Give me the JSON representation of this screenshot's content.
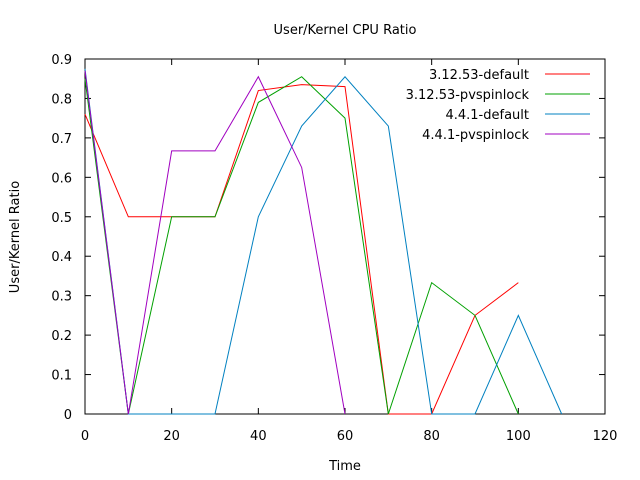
{
  "chart_data": {
    "type": "line",
    "title": "User/Kernel CPU Ratio",
    "xlabel": "Time",
    "ylabel": "User/Kernel Ratio",
    "xlim": [
      0,
      120
    ],
    "ylim": [
      0,
      0.9
    ],
    "xticks": [
      "0",
      "20",
      "40",
      "60",
      "80",
      "100",
      "120"
    ],
    "yticks": [
      "0",
      "0.1",
      "0.2",
      "0.3",
      "0.4",
      "0.5",
      "0.6",
      "0.7",
      "0.8",
      "0.9"
    ],
    "grid": false,
    "legend_position": "top-right",
    "series": [
      {
        "name": "3.12.53-default",
        "color": "#ff0000",
        "x": [
          0,
          10,
          20,
          30,
          40,
          50,
          60,
          70,
          80,
          90,
          100
        ],
        "y": [
          0.76,
          0.5,
          0.5,
          0.5,
          0.82,
          0.835,
          0.83,
          0.0,
          0.0,
          0.25,
          0.333
        ]
      },
      {
        "name": "3.12.53-pvspinlock",
        "color": "#00a000",
        "x": [
          0,
          10,
          20,
          30,
          40,
          50,
          60,
          70,
          80,
          90,
          100
        ],
        "y": [
          0.85,
          0.0,
          0.5,
          0.5,
          0.79,
          0.855,
          0.75,
          0.0,
          0.333,
          0.25,
          0.0
        ]
      },
      {
        "name": "4.4.1-default",
        "color": "#0080c0",
        "x": [
          0,
          10,
          20,
          30,
          40,
          50,
          60,
          70,
          80,
          90,
          100,
          110
        ],
        "y": [
          0.875,
          0.0,
          0.0,
          0.0,
          0.5,
          0.73,
          0.855,
          0.73,
          0.0,
          0.0,
          0.25,
          0.0
        ]
      },
      {
        "name": "4.4.1-pvspinlock",
        "color": "#a000c0",
        "x": [
          0,
          10,
          20,
          30,
          40,
          50,
          60
        ],
        "y": [
          0.87,
          0.0,
          0.667,
          0.667,
          0.855,
          0.625,
          0.0
        ]
      }
    ]
  }
}
